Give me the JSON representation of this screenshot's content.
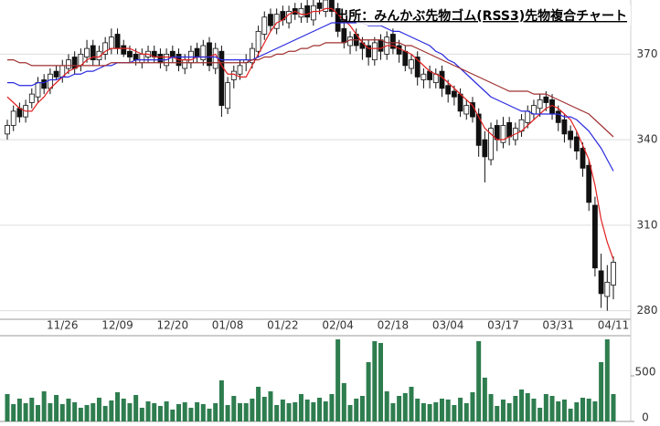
{
  "chart_data": {
    "type": "candlestick",
    "title": "出所：みんかぶ先物ゴム(RSS3)先物複合チャート",
    "categories": [
      null,
      null,
      null,
      null,
      null,
      null,
      null,
      null,
      null,
      "11/26",
      null,
      null,
      null,
      null,
      null,
      null,
      null,
      null,
      "12/09",
      null,
      null,
      null,
      null,
      null,
      null,
      null,
      null,
      "12/20",
      null,
      null,
      null,
      null,
      null,
      null,
      null,
      null,
      "01/08",
      null,
      null,
      null,
      null,
      null,
      null,
      null,
      null,
      "01/22",
      null,
      null,
      null,
      null,
      null,
      null,
      null,
      null,
      "02/04",
      null,
      null,
      null,
      null,
      null,
      null,
      null,
      null,
      "02/18",
      null,
      null,
      null,
      null,
      null,
      null,
      null,
      null,
      "03/04",
      null,
      null,
      null,
      null,
      null,
      null,
      null,
      null,
      "03/17",
      null,
      null,
      null,
      null,
      null,
      null,
      null,
      null,
      "03/31",
      null,
      null,
      null,
      null,
      null,
      null,
      null,
      null,
      "04/11"
    ],
    "open": [
      342,
      345,
      351,
      348,
      353,
      355,
      361,
      358,
      364,
      362,
      365,
      369,
      366,
      369,
      373,
      368,
      370,
      372,
      377,
      373,
      371,
      370,
      367,
      369,
      371,
      370,
      366,
      371,
      370,
      365,
      367,
      372,
      368,
      374,
      365,
      371,
      351,
      361,
      363,
      367,
      367,
      371,
      377,
      384,
      379,
      385,
      381,
      386,
      383,
      387,
      382,
      388,
      385,
      390,
      386,
      379,
      373,
      377,
      374,
      373,
      368,
      375,
      370,
      377,
      373,
      371,
      365,
      369,
      361,
      364,
      360,
      364,
      359,
      357,
      356,
      349,
      353,
      349,
      340,
      333,
      345,
      339,
      346,
      340,
      343,
      346,
      349,
      351,
      355,
      354,
      350,
      347,
      343,
      341,
      337,
      331,
      317,
      294,
      285,
      289
    ],
    "high": [
      347,
      352,
      353,
      354,
      358,
      362,
      363,
      365,
      366,
      368,
      370,
      371,
      372,
      375,
      375,
      373,
      376,
      379,
      379,
      375,
      373,
      372,
      372,
      373,
      373,
      372,
      372,
      373,
      372,
      370,
      373,
      374,
      375,
      376,
      374,
      373,
      362,
      366,
      368,
      370,
      374,
      380,
      385,
      386,
      386,
      387,
      387,
      388,
      388,
      389,
      389,
      390,
      392,
      392,
      388,
      381,
      378,
      379,
      376,
      375,
      376,
      377,
      378,
      379,
      375,
      373,
      370,
      371,
      365,
      366,
      365,
      366,
      361,
      359,
      358,
      354,
      355,
      351,
      343,
      346,
      347,
      348,
      348,
      346,
      349,
      352,
      354,
      356,
      357,
      356,
      352,
      349,
      345,
      343,
      339,
      333,
      320,
      300,
      296,
      299
    ],
    "low": [
      340,
      343,
      346,
      346,
      351,
      353,
      356,
      356,
      361,
      360,
      363,
      363,
      364,
      367,
      366,
      366,
      368,
      370,
      370,
      369,
      367,
      366,
      365,
      367,
      367,
      365,
      364,
      367,
      364,
      363,
      365,
      367,
      366,
      364,
      363,
      348,
      349,
      358,
      361,
      364,
      365,
      369,
      375,
      378,
      377,
      380,
      379,
      382,
      381,
      381,
      380,
      384,
      383,
      383,
      376,
      372,
      370,
      371,
      368,
      366,
      366,
      368,
      368,
      370,
      367,
      364,
      363,
      359,
      358,
      358,
      358,
      355,
      353,
      352,
      348,
      347,
      346,
      334,
      325,
      331,
      336,
      337,
      338,
      338,
      341,
      344,
      347,
      348,
      350,
      347,
      343,
      339,
      337,
      333,
      327,
      315,
      292,
      281,
      280,
      284
    ],
    "close": [
      345,
      350,
      348,
      352,
      356,
      360,
      358,
      363,
      362,
      366,
      368,
      365,
      370,
      372,
      368,
      371,
      374,
      376,
      372,
      370,
      369,
      368,
      370,
      371,
      369,
      367,
      370,
      369,
      366,
      368,
      371,
      369,
      373,
      366,
      372,
      352,
      360,
      364,
      366,
      368,
      372,
      378,
      383,
      380,
      384,
      382,
      385,
      384,
      386,
      383,
      387,
      386,
      389,
      385,
      378,
      374,
      376,
      373,
      372,
      369,
      374,
      371,
      376,
      372,
      370,
      366,
      368,
      362,
      363,
      361,
      363,
      358,
      356,
      355,
      350,
      352,
      348,
      338,
      334,
      344,
      340,
      345,
      341,
      344,
      347,
      350,
      352,
      354,
      353,
      349,
      346,
      342,
      340,
      336,
      330,
      318,
      295,
      286,
      290,
      297
    ],
    "lines": [
      {
        "color": "#e02020",
        "values": [
          355,
          353,
          351,
          350,
          350,
          353,
          355,
          358,
          360,
          362,
          364,
          365,
          366,
          368,
          369,
          369,
          371,
          372,
          372,
          372,
          372,
          371,
          370,
          370,
          369,
          369,
          369,
          369,
          368,
          368,
          368,
          369,
          369,
          369,
          370,
          366,
          363,
          363,
          362,
          362,
          366,
          370,
          374,
          378,
          381,
          382,
          384,
          385,
          384,
          384,
          385,
          385,
          386,
          386,
          384,
          382,
          380,
          377,
          374,
          372,
          372,
          372,
          373,
          373,
          372,
          371,
          370,
          368,
          366,
          364,
          363,
          362,
          360,
          358,
          356,
          354,
          352,
          348,
          344,
          342,
          340,
          340,
          341,
          342,
          343,
          345,
          347,
          349,
          351,
          352,
          351,
          349,
          347,
          343,
          338,
          333,
          324,
          312,
          304,
          298
        ]
      },
      {
        "color": "#2a2ae0",
        "values": [
          360,
          360,
          359,
          359,
          359,
          360,
          360,
          361,
          361,
          362,
          362,
          363,
          363,
          364,
          364,
          365,
          366,
          366,
          367,
          367,
          367,
          368,
          368,
          368,
          368,
          368,
          368,
          369,
          369,
          369,
          369,
          369,
          369,
          369,
          369,
          368,
          368,
          368,
          368,
          368,
          368,
          369,
          370,
          371,
          372,
          373,
          374,
          375,
          376,
          377,
          378,
          379,
          380,
          381,
          381,
          381,
          381,
          381,
          381,
          380,
          380,
          380,
          379,
          378,
          378,
          377,
          376,
          375,
          374,
          373,
          371,
          370,
          368,
          367,
          365,
          363,
          361,
          359,
          357,
          355,
          354,
          353,
          352,
          351,
          350,
          350,
          349,
          349,
          349,
          349,
          349,
          348,
          348,
          347,
          345,
          343,
          340,
          337,
          333,
          329
        ]
      },
      {
        "color": "#a03030",
        "values": [
          368,
          368,
          367,
          367,
          366,
          366,
          366,
          366,
          366,
          366,
          366,
          366,
          366,
          366,
          366,
          366,
          366,
          367,
          367,
          367,
          367,
          367,
          367,
          367,
          367,
          367,
          367,
          367,
          367,
          367,
          367,
          367,
          367,
          367,
          367,
          367,
          367,
          367,
          367,
          367,
          368,
          368,
          369,
          369,
          370,
          370,
          371,
          371,
          372,
          372,
          373,
          373,
          374,
          374,
          374,
          374,
          375,
          375,
          375,
          375,
          375,
          375,
          374,
          374,
          374,
          373,
          373,
          372,
          371,
          370,
          369,
          368,
          367,
          366,
          365,
          364,
          363,
          362,
          361,
          360,
          359,
          358,
          357,
          357,
          357,
          357,
          356,
          356,
          356,
          355,
          354,
          353,
          352,
          351,
          350,
          349,
          347,
          345,
          343,
          341
        ]
      }
    ],
    "ylim": [
      277,
      389
    ],
    "yticks": [
      280,
      310,
      340,
      370
    ],
    "grid": true,
    "up_color": "#ffffff",
    "down_color": "#111111",
    "volume": {
      "color": "#2e7d4f",
      "ylim": [
        0,
        920
      ],
      "yticks": [
        0,
        500
      ],
      "values": [
        300,
        190,
        250,
        200,
        260,
        180,
        330,
        200,
        290,
        190,
        250,
        210,
        150,
        180,
        200,
        260,
        170,
        230,
        320,
        250,
        200,
        290,
        150,
        220,
        200,
        170,
        220,
        130,
        190,
        210,
        150,
        210,
        190,
        140,
        200,
        450,
        180,
        280,
        200,
        200,
        250,
        380,
        270,
        330,
        180,
        240,
        200,
        210,
        300,
        240,
        210,
        260,
        220,
        300,
        900,
        420,
        180,
        250,
        280,
        650,
        880,
        860,
        330,
        200,
        280,
        310,
        380,
        250,
        200,
        190,
        210,
        250,
        240,
        180,
        260,
        200,
        320,
        880,
        480,
        300,
        170,
        240,
        200,
        280,
        350,
        310,
        250,
        150,
        300,
        280,
        220,
        240,
        140,
        210,
        260,
        250,
        220,
        650,
        900,
        300
      ]
    }
  }
}
